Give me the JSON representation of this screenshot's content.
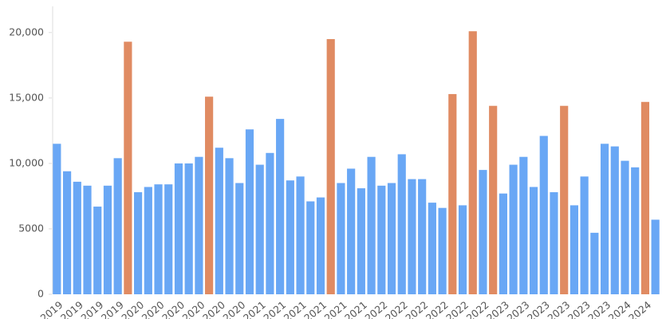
{
  "chart_data": {
    "type": "bar",
    "categories": [
      "2019",
      null,
      "2019",
      null,
      "2019",
      null,
      "2019",
      null,
      "2020",
      null,
      "2020",
      null,
      "2020",
      null,
      "2020",
      null,
      "2020",
      null,
      "2020",
      null,
      "2021",
      null,
      "2021",
      null,
      "2021",
      null,
      "2021",
      null,
      "2021",
      null,
      "2021",
      null,
      "2022",
      null,
      "2022",
      null,
      "2022",
      null,
      "2022",
      null,
      "2022",
      null,
      "2022",
      null,
      "2023",
      null,
      "2023",
      null,
      "2023",
      null,
      "2023",
      null,
      "2023",
      null,
      "2023",
      null,
      "2024",
      null,
      "2024",
      null
    ],
    "values": [
      11500,
      9400,
      8600,
      8300,
      6700,
      8300,
      10400,
      19300,
      7800,
      8200,
      8400,
      8400,
      10000,
      10000,
      10500,
      15100,
      11200,
      10400,
      8500,
      12600,
      9900,
      10800,
      13400,
      8700,
      9000,
      7100,
      7400,
      19500,
      8500,
      9600,
      8100,
      10500,
      8300,
      8500,
      10700,
      8800,
      8800,
      7000,
      6600,
      15300,
      6800,
      20100,
      9500,
      14400,
      7700,
      9900,
      10500,
      8200,
      12100,
      7800,
      14400,
      6800,
      9000,
      4700,
      11500,
      11300,
      10200,
      9700,
      14700,
      5700
    ],
    "colors": [
      "#69a7f5",
      "#69a7f5",
      "#69a7f5",
      "#69a7f5",
      "#69a7f5",
      "#69a7f5",
      "#69a7f5",
      "#e08b62",
      "#69a7f5",
      "#69a7f5",
      "#69a7f5",
      "#69a7f5",
      "#69a7f5",
      "#69a7f5",
      "#69a7f5",
      "#e08b62",
      "#69a7f5",
      "#69a7f5",
      "#69a7f5",
      "#69a7f5",
      "#69a7f5",
      "#69a7f5",
      "#69a7f5",
      "#69a7f5",
      "#69a7f5",
      "#69a7f5",
      "#69a7f5",
      "#e08b62",
      "#69a7f5",
      "#69a7f5",
      "#69a7f5",
      "#69a7f5",
      "#69a7f5",
      "#69a7f5",
      "#69a7f5",
      "#69a7f5",
      "#69a7f5",
      "#69a7f5",
      "#69a7f5",
      "#e08b62",
      "#69a7f5",
      "#e08b62",
      "#69a7f5",
      "#e08b62",
      "#69a7f5",
      "#69a7f5",
      "#69a7f5",
      "#69a7f5",
      "#69a7f5",
      "#69a7f5",
      "#e08b62",
      "#69a7f5",
      "#69a7f5",
      "#69a7f5",
      "#69a7f5",
      "#69a7f5",
      "#69a7f5",
      "#69a7f5",
      "#e08b62",
      "#69a7f5"
    ],
    "ylim": [
      0,
      22000
    ],
    "yticks": [
      0,
      5000,
      {
        "value": 10000,
        "label": "10,000"
      },
      {
        "value": 15000,
        "label": "15,000"
      },
      {
        "value": 20000,
        "label": "20,000"
      }
    ],
    "grid": false
  }
}
